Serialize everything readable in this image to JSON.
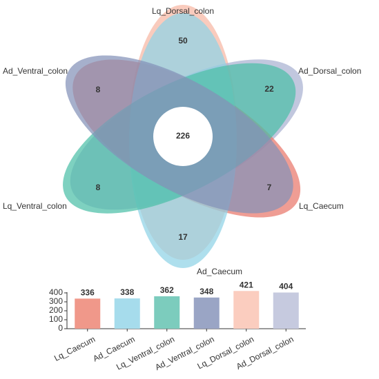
{
  "chart_data": [
    {
      "type": "venn-flower",
      "center_value": 226,
      "petals": [
        {
          "name": "Lq_Dorsal_colon",
          "unique": 50,
          "color": "#f7b7a3"
        },
        {
          "name": "Ad_Dorsal_colon",
          "unique": 22,
          "color": "#a9b1d1"
        },
        {
          "name": "Lq_Caecum",
          "unique": 7,
          "color": "#e9776b"
        },
        {
          "name": "Ad_Caecum",
          "unique": 17,
          "color": "#8fd2e6"
        },
        {
          "name": "Lq_Ventral_colon",
          "unique": 8,
          "color": "#4cbfa7"
        },
        {
          "name": "Ad_Ventral_colon",
          "unique": 8,
          "color": "#8391b8"
        }
      ]
    },
    {
      "type": "bar",
      "categories": [
        "Lq_Caecum",
        "Ad_Caecum",
        "Lq_Ventral_colon",
        "Ad_Ventral_colon",
        "Lq_Dorsal_colon",
        "Ad_Dorsal_colon"
      ],
      "values": [
        336,
        338,
        362,
        348,
        421,
        404
      ],
      "colors": [
        "#f0988a",
        "#a6dcec",
        "#7cccbd",
        "#9aa5c5",
        "#fbcdbf",
        "#c6cadf"
      ],
      "ylim": [
        0,
        400
      ],
      "yticks": [
        0,
        100,
        200,
        300,
        400
      ]
    }
  ]
}
